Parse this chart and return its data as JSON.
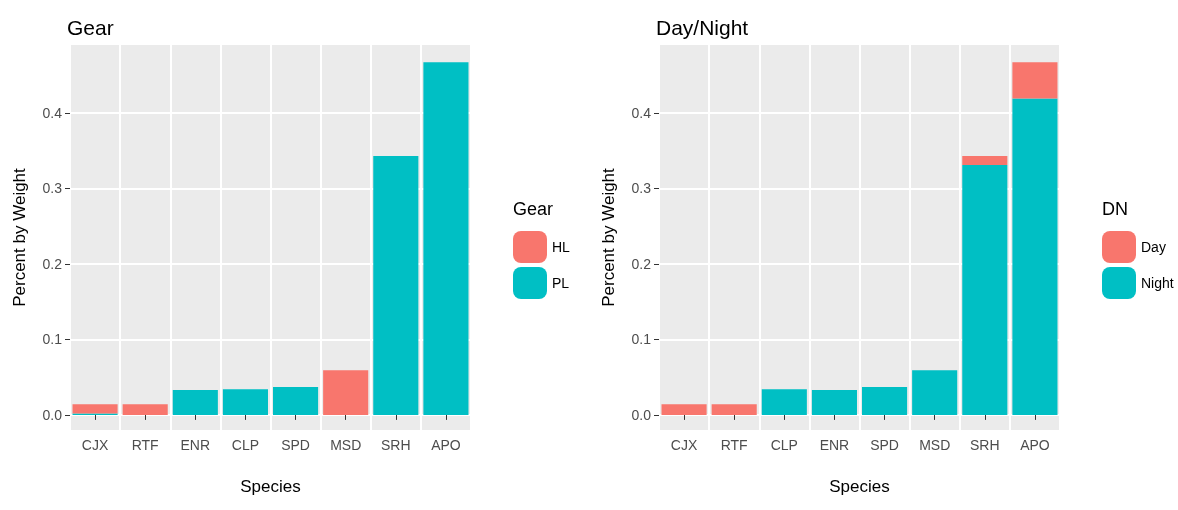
{
  "chart_data": [
    {
      "type": "bar",
      "title": "Gear",
      "xlabel": "Species",
      "ylabel": "Percent by Weight",
      "legend_title": "Gear",
      "stacked": true,
      "categories": [
        "CJX",
        "RTF",
        "ENR",
        "CLP",
        "SPD",
        "MSD",
        "SRH",
        "APO"
      ],
      "series": [
        {
          "name": "PL",
          "color": "#00bfc4",
          "values": [
            0.002,
            0,
            0.033,
            0.034,
            0.037,
            0,
            0.343,
            0.467
          ]
        },
        {
          "name": "HL",
          "color": "#f8766d",
          "values": [
            0.012,
            0.014,
            0,
            0,
            0,
            0.059,
            0,
            0
          ]
        }
      ],
      "ylim": [
        -0.02,
        0.49
      ],
      "yticks": [
        {
          "value": 0,
          "label": "0.0"
        },
        0.1,
        0.2,
        0.3,
        0.4
      ],
      "grid": true,
      "legend": "right"
    },
    {
      "type": "bar",
      "title": "Day/Night",
      "xlabel": "Species",
      "ylabel": "Percent by Weight",
      "legend_title": "DN",
      "stacked": true,
      "categories": [
        "CJX",
        "RTF",
        "CLP",
        "ENR",
        "SPD",
        "MSD",
        "SRH",
        "APO"
      ],
      "series": [
        {
          "name": "Night",
          "color": "#00bfc4",
          "values": [
            0,
            0,
            0.034,
            0.033,
            0.037,
            0.059,
            0.331,
            0.419
          ]
        },
        {
          "name": "Day",
          "color": "#f8766d",
          "values": [
            0.014,
            0.014,
            0,
            0,
            0,
            0,
            0.012,
            0.048
          ]
        }
      ],
      "ylim": [
        -0.02,
        0.49
      ],
      "yticks": [
        {
          "value": 0,
          "label": "0.0"
        },
        0.1,
        0.2,
        0.3,
        0.4
      ],
      "grid": true,
      "legend": "right"
    }
  ]
}
